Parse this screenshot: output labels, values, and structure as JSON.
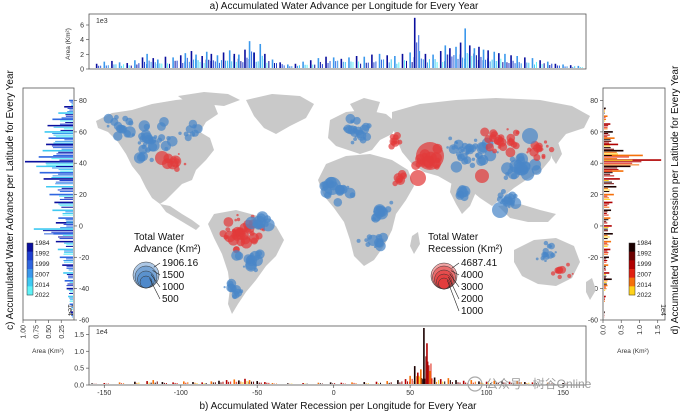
{
  "chart_data": [
    {
      "id": "top",
      "type": "area",
      "title": "a) Accumulated Water Advance per Longitude for Every Year",
      "ylabel": "Area (Km²)",
      "multiplier": "1e3",
      "x_range": [
        -160,
        165
      ],
      "ylim": [
        0,
        7.5
      ],
      "y_ticks": [
        0,
        2,
        4,
        6
      ],
      "spikes": [
        {
          "x": -155,
          "v": 0.6
        },
        {
          "x": -150,
          "v": 0.9
        },
        {
          "x": -145,
          "v": 1.0
        },
        {
          "x": -140,
          "v": 0.8
        },
        {
          "x": -135,
          "v": 0.7
        },
        {
          "x": -130,
          "v": 1.1
        },
        {
          "x": -125,
          "v": 1.5
        },
        {
          "x": -122,
          "v": 2.0
        },
        {
          "x": -118,
          "v": 1.4
        },
        {
          "x": -115,
          "v": 1.2
        },
        {
          "x": -110,
          "v": 1.6
        },
        {
          "x": -105,
          "v": 1.5
        },
        {
          "x": -100,
          "v": 1.8
        },
        {
          "x": -97,
          "v": 2.1
        },
        {
          "x": -93,
          "v": 2.4
        },
        {
          "x": -90,
          "v": 1.9
        },
        {
          "x": -86,
          "v": 1.7
        },
        {
          "x": -83,
          "v": 2.3
        },
        {
          "x": -80,
          "v": 2.0
        },
        {
          "x": -76,
          "v": 1.8
        },
        {
          "x": -72,
          "v": 2.2
        },
        {
          "x": -68,
          "v": 2.5
        },
        {
          "x": -65,
          "v": 2.0
        },
        {
          "x": -62,
          "v": 1.9
        },
        {
          "x": -58,
          "v": 2.6
        },
        {
          "x": -55,
          "v": 3.8
        },
        {
          "x": -52,
          "v": 2.2
        },
        {
          "x": -48,
          "v": 3.4
        },
        {
          "x": -45,
          "v": 2.0
        },
        {
          "x": -40,
          "v": 1.2
        },
        {
          "x": -35,
          "v": 0.8
        },
        {
          "x": -30,
          "v": 0.5
        },
        {
          "x": -25,
          "v": 0.6
        },
        {
          "x": -20,
          "v": 0.9
        },
        {
          "x": -15,
          "v": 1.1
        },
        {
          "x": -10,
          "v": 1.4
        },
        {
          "x": -5,
          "v": 1.6
        },
        {
          "x": 0,
          "v": 1.5
        },
        {
          "x": 5,
          "v": 1.3
        },
        {
          "x": 10,
          "v": 1.5
        },
        {
          "x": 15,
          "v": 1.7
        },
        {
          "x": 20,
          "v": 1.6
        },
        {
          "x": 25,
          "v": 1.9
        },
        {
          "x": 30,
          "v": 2.0
        },
        {
          "x": 35,
          "v": 1.8
        },
        {
          "x": 40,
          "v": 1.7
        },
        {
          "x": 45,
          "v": 2.0
        },
        {
          "x": 50,
          "v": 2.2
        },
        {
          "x": 53,
          "v": 7.1
        },
        {
          "x": 56,
          "v": 2.4
        },
        {
          "x": 60,
          "v": 2.0
        },
        {
          "x": 65,
          "v": 1.9
        },
        {
          "x": 70,
          "v": 2.4
        },
        {
          "x": 73,
          "v": 3.2
        },
        {
          "x": 76,
          "v": 2.8
        },
        {
          "x": 80,
          "v": 3.0
        },
        {
          "x": 83,
          "v": 3.6
        },
        {
          "x": 86,
          "v": 5.6
        },
        {
          "x": 89,
          "v": 3.2
        },
        {
          "x": 92,
          "v": 2.8
        },
        {
          "x": 95,
          "v": 3.0
        },
        {
          "x": 98,
          "v": 2.6
        },
        {
          "x": 101,
          "v": 2.5
        },
        {
          "x": 105,
          "v": 2.3
        },
        {
          "x": 108,
          "v": 2.1
        },
        {
          "x": 112,
          "v": 2.0
        },
        {
          "x": 116,
          "v": 1.8
        },
        {
          "x": 120,
          "v": 1.7
        },
        {
          "x": 125,
          "v": 1.5
        },
        {
          "x": 130,
          "v": 1.4
        },
        {
          "x": 135,
          "v": 1.1
        },
        {
          "x": 140,
          "v": 0.9
        },
        {
          "x": 145,
          "v": 0.6
        },
        {
          "x": 150,
          "v": 0.5
        },
        {
          "x": 155,
          "v": 0.4
        },
        {
          "x": 160,
          "v": 0.3
        }
      ]
    },
    {
      "id": "bottom",
      "type": "area",
      "title": "b) Accumulated Water Recession per Longitude for Every Year",
      "multiplier": "1e4",
      "x_range": [
        -160,
        165
      ],
      "x_ticks": [
        -150,
        -100,
        -50,
        0,
        50,
        100,
        150
      ],
      "ylim": [
        0,
        1.75
      ],
      "y_ticks": [
        0.0,
        0.5,
        1.0,
        1.5
      ],
      "spikes": [
        {
          "x": -158,
          "v": 0.02
        },
        {
          "x": -150,
          "v": 0.03
        },
        {
          "x": -140,
          "v": 0.05
        },
        {
          "x": -130,
          "v": 0.07
        },
        {
          "x": -122,
          "v": 0.09
        },
        {
          "x": -118,
          "v": 0.12
        },
        {
          "x": -112,
          "v": 0.06
        },
        {
          "x": -105,
          "v": 0.05
        },
        {
          "x": -98,
          "v": 0.08
        },
        {
          "x": -92,
          "v": 0.06
        },
        {
          "x": -86,
          "v": 0.05
        },
        {
          "x": -80,
          "v": 0.08
        },
        {
          "x": -75,
          "v": 0.1
        },
        {
          "x": -70,
          "v": 0.12
        },
        {
          "x": -65,
          "v": 0.14
        },
        {
          "x": -62,
          "v": 0.11
        },
        {
          "x": -58,
          "v": 0.16
        },
        {
          "x": -55,
          "v": 0.12
        },
        {
          "x": -50,
          "v": 0.09
        },
        {
          "x": -45,
          "v": 0.06
        },
        {
          "x": -40,
          "v": 0.03
        },
        {
          "x": -30,
          "v": 0.02
        },
        {
          "x": -20,
          "v": 0.03
        },
        {
          "x": -10,
          "v": 0.04
        },
        {
          "x": -2,
          "v": 0.05
        },
        {
          "x": 5,
          "v": 0.04
        },
        {
          "x": 12,
          "v": 0.05
        },
        {
          "x": 20,
          "v": 0.06
        },
        {
          "x": 28,
          "v": 0.07
        },
        {
          "x": 35,
          "v": 0.09
        },
        {
          "x": 42,
          "v": 0.12
        },
        {
          "x": 47,
          "v": 0.15
        },
        {
          "x": 50,
          "v": 0.25
        },
        {
          "x": 53,
          "v": 0.55
        },
        {
          "x": 55,
          "v": 0.35
        },
        {
          "x": 57,
          "v": 0.45
        },
        {
          "x": 59,
          "v": 1.72
        },
        {
          "x": 61,
          "v": 1.25
        },
        {
          "x": 63,
          "v": 0.4
        },
        {
          "x": 66,
          "v": 0.2
        },
        {
          "x": 70,
          "v": 0.15
        },
        {
          "x": 75,
          "v": 0.18
        },
        {
          "x": 80,
          "v": 0.12
        },
        {
          "x": 85,
          "v": 0.1
        },
        {
          "x": 90,
          "v": 0.12
        },
        {
          "x": 95,
          "v": 0.08
        },
        {
          "x": 100,
          "v": 0.07
        },
        {
          "x": 105,
          "v": 0.1
        },
        {
          "x": 110,
          "v": 0.08
        },
        {
          "x": 115,
          "v": 0.07
        },
        {
          "x": 120,
          "v": 0.09
        },
        {
          "x": 125,
          "v": 0.06
        },
        {
          "x": 130,
          "v": 0.05
        },
        {
          "x": 140,
          "v": 0.04
        },
        {
          "x": 150,
          "v": 0.03
        }
      ]
    },
    {
      "id": "left",
      "type": "area",
      "title": "c) Accumulated Water Advance per Latitude for Every Year",
      "xlabel": "Area (Km²)",
      "multiplier": "1e4",
      "orientation": "horizontal",
      "y_range": [
        -60,
        88
      ],
      "y_ticks": [
        -60,
        -40,
        -20,
        0,
        20,
        40,
        60,
        80
      ],
      "xlim": [
        0,
        1.0
      ],
      "x_ticks": [
        1.0,
        0.75,
        0.5,
        0.25
      ],
      "x_tick_labels": [
        "1.00",
        "0.75",
        "0.50",
        "0.25"
      ],
      "spikes": [
        {
          "y": -55,
          "v": 0.05
        },
        {
          "y": -50,
          "v": 0.07
        },
        {
          "y": -45,
          "v": 0.1
        },
        {
          "y": -40,
          "v": 0.13
        },
        {
          "y": -35,
          "v": 0.17
        },
        {
          "y": -30,
          "v": 0.2
        },
        {
          "y": -25,
          "v": 0.22
        },
        {
          "y": -20,
          "v": 0.27
        },
        {
          "y": -15,
          "v": 0.31
        },
        {
          "y": -10,
          "v": 0.35
        },
        {
          "y": -5,
          "v": 0.4
        },
        {
          "y": -2,
          "v": 0.8
        },
        {
          "y": 2,
          "v": 0.35
        },
        {
          "y": 5,
          "v": 0.3
        },
        {
          "y": 10,
          "v": 0.42
        },
        {
          "y": 15,
          "v": 0.38
        },
        {
          "y": 20,
          "v": 0.48
        },
        {
          "y": 25,
          "v": 0.55
        },
        {
          "y": 30,
          "v": 0.6
        },
        {
          "y": 34,
          "v": 0.68
        },
        {
          "y": 38,
          "v": 0.75
        },
        {
          "y": 41,
          "v": 0.98
        },
        {
          "y": 44,
          "v": 0.7
        },
        {
          "y": 48,
          "v": 0.62
        },
        {
          "y": 52,
          "v": 0.55
        },
        {
          "y": 56,
          "v": 0.5
        },
        {
          "y": 60,
          "v": 0.58
        },
        {
          "y": 64,
          "v": 0.52
        },
        {
          "y": 68,
          "v": 0.42
        },
        {
          "y": 72,
          "v": 0.3
        },
        {
          "y": 76,
          "v": 0.18
        },
        {
          "y": 80,
          "v": 0.08
        }
      ],
      "colorbar": {
        "labels": [
          "1984",
          "1992",
          "1999",
          "2007",
          "2014",
          "2022"
        ],
        "colors": [
          "#0a0f9e",
          "#1f3fd0",
          "#2f66e0",
          "#3b98ec",
          "#3fc9f2",
          "#5ff2f7"
        ]
      }
    },
    {
      "id": "right",
      "type": "area",
      "title": "d) Accumulated Water Recession per Latitude for Every Year",
      "xlabel": "Area (Km²)",
      "multiplier": "1e4",
      "orientation": "horizontal",
      "y_range": [
        -60,
        88
      ],
      "y_ticks": [
        -60,
        -40,
        -20,
        0,
        20,
        40,
        60,
        80
      ],
      "xlim": [
        0,
        1.7
      ],
      "x_ticks": [
        0,
        0.5,
        1.0,
        1.5
      ],
      "x_tick_labels": [
        "0.0",
        "0.5",
        "1.0",
        "1.5"
      ],
      "spikes": [
        {
          "y": -55,
          "v": 0.02
        },
        {
          "y": -45,
          "v": 0.05
        },
        {
          "y": -38,
          "v": 0.1
        },
        {
          "y": -34,
          "v": 0.22
        },
        {
          "y": -30,
          "v": 0.15
        },
        {
          "y": -25,
          "v": 0.12
        },
        {
          "y": -20,
          "v": 0.14
        },
        {
          "y": -15,
          "v": 0.18
        },
        {
          "y": -10,
          "v": 0.2
        },
        {
          "y": -5,
          "v": 0.25
        },
        {
          "y": 0,
          "v": 0.22
        },
        {
          "y": 5,
          "v": 0.18
        },
        {
          "y": 10,
          "v": 0.2
        },
        {
          "y": 15,
          "v": 0.24
        },
        {
          "y": 20,
          "v": 0.28
        },
        {
          "y": 25,
          "v": 0.35
        },
        {
          "y": 30,
          "v": 0.45
        },
        {
          "y": 35,
          "v": 0.55
        },
        {
          "y": 38,
          "v": 0.75
        },
        {
          "y": 42,
          "v": 1.62
        },
        {
          "y": 45,
          "v": 1.1
        },
        {
          "y": 48,
          "v": 0.55
        },
        {
          "y": 52,
          "v": 0.4
        },
        {
          "y": 56,
          "v": 0.3
        },
        {
          "y": 60,
          "v": 0.25
        },
        {
          "y": 65,
          "v": 0.18
        },
        {
          "y": 70,
          "v": 0.1
        },
        {
          "y": 75,
          "v": 0.05
        }
      ],
      "colorbar": {
        "labels": [
          "1984",
          "1992",
          "1999",
          "2007",
          "2014",
          "2022"
        ],
        "colors": [
          "#1a0000",
          "#6b0000",
          "#b00000",
          "#e02010",
          "#f5700a",
          "#ffd21a"
        ]
      }
    }
  ],
  "map": {
    "advance_legend": {
      "title_lines": [
        "Total Water",
        "Advance (Km²)"
      ],
      "values": [
        "1906.16",
        "1500",
        "1000",
        "500"
      ],
      "color": "#4a86c8"
    },
    "recession_legend": {
      "title_lines": [
        "Total Water",
        "Recession (Km²)"
      ],
      "values": [
        "4687.41",
        "4000",
        "3000",
        "2000",
        "1000"
      ],
      "color": "#e23a3a"
    },
    "advance_color": "#4a86c8",
    "recession_color": "#e23a3a"
  },
  "watermark": "公众号 · 树谷Online"
}
